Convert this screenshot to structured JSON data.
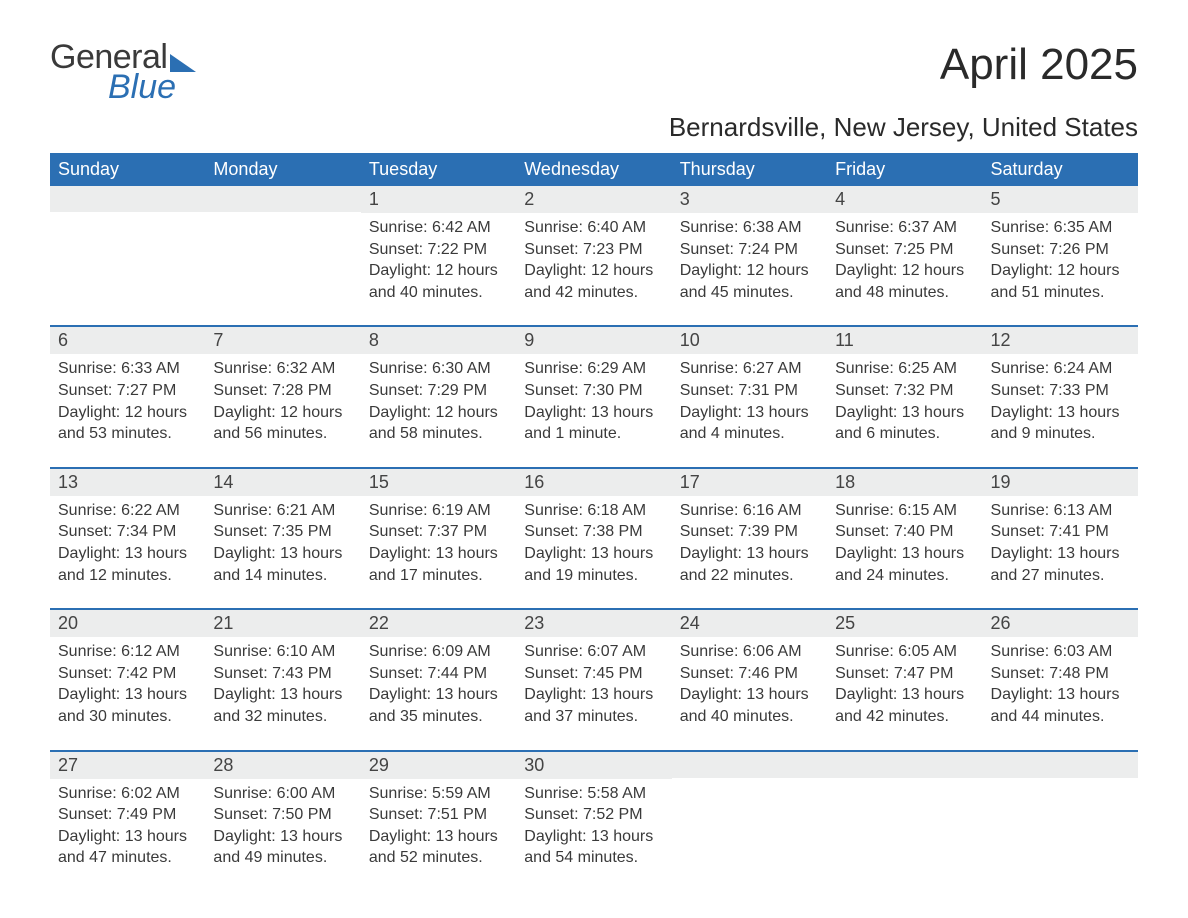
{
  "logo": {
    "line1": "General",
    "line2": "Blue"
  },
  "title": "April 2025",
  "location": "Bernardsville, New Jersey, United States",
  "colors": {
    "header_bg": "#2b6fb3",
    "header_text": "#ffffff",
    "daynum_bg": "#eceded",
    "border": "#2b6fb3",
    "body_text": "#3a3a3a",
    "page_bg": "#ffffff"
  },
  "dow": [
    "Sunday",
    "Monday",
    "Tuesday",
    "Wednesday",
    "Thursday",
    "Friday",
    "Saturday"
  ],
  "weeks": [
    [
      {
        "n": "",
        "sr": "",
        "ss": "",
        "dl": ""
      },
      {
        "n": "",
        "sr": "",
        "ss": "",
        "dl": ""
      },
      {
        "n": "1",
        "sr": "Sunrise: 6:42 AM",
        "ss": "Sunset: 7:22 PM",
        "dl": "Daylight: 12 hours and 40 minutes."
      },
      {
        "n": "2",
        "sr": "Sunrise: 6:40 AM",
        "ss": "Sunset: 7:23 PM",
        "dl": "Daylight: 12 hours and 42 minutes."
      },
      {
        "n": "3",
        "sr": "Sunrise: 6:38 AM",
        "ss": "Sunset: 7:24 PM",
        "dl": "Daylight: 12 hours and 45 minutes."
      },
      {
        "n": "4",
        "sr": "Sunrise: 6:37 AM",
        "ss": "Sunset: 7:25 PM",
        "dl": "Daylight: 12 hours and 48 minutes."
      },
      {
        "n": "5",
        "sr": "Sunrise: 6:35 AM",
        "ss": "Sunset: 7:26 PM",
        "dl": "Daylight: 12 hours and 51 minutes."
      }
    ],
    [
      {
        "n": "6",
        "sr": "Sunrise: 6:33 AM",
        "ss": "Sunset: 7:27 PM",
        "dl": "Daylight: 12 hours and 53 minutes."
      },
      {
        "n": "7",
        "sr": "Sunrise: 6:32 AM",
        "ss": "Sunset: 7:28 PM",
        "dl": "Daylight: 12 hours and 56 minutes."
      },
      {
        "n": "8",
        "sr": "Sunrise: 6:30 AM",
        "ss": "Sunset: 7:29 PM",
        "dl": "Daylight: 12 hours and 58 minutes."
      },
      {
        "n": "9",
        "sr": "Sunrise: 6:29 AM",
        "ss": "Sunset: 7:30 PM",
        "dl": "Daylight: 13 hours and 1 minute."
      },
      {
        "n": "10",
        "sr": "Sunrise: 6:27 AM",
        "ss": "Sunset: 7:31 PM",
        "dl": "Daylight: 13 hours and 4 minutes."
      },
      {
        "n": "11",
        "sr": "Sunrise: 6:25 AM",
        "ss": "Sunset: 7:32 PM",
        "dl": "Daylight: 13 hours and 6 minutes."
      },
      {
        "n": "12",
        "sr": "Sunrise: 6:24 AM",
        "ss": "Sunset: 7:33 PM",
        "dl": "Daylight: 13 hours and 9 minutes."
      }
    ],
    [
      {
        "n": "13",
        "sr": "Sunrise: 6:22 AM",
        "ss": "Sunset: 7:34 PM",
        "dl": "Daylight: 13 hours and 12 minutes."
      },
      {
        "n": "14",
        "sr": "Sunrise: 6:21 AM",
        "ss": "Sunset: 7:35 PM",
        "dl": "Daylight: 13 hours and 14 minutes."
      },
      {
        "n": "15",
        "sr": "Sunrise: 6:19 AM",
        "ss": "Sunset: 7:37 PM",
        "dl": "Daylight: 13 hours and 17 minutes."
      },
      {
        "n": "16",
        "sr": "Sunrise: 6:18 AM",
        "ss": "Sunset: 7:38 PM",
        "dl": "Daylight: 13 hours and 19 minutes."
      },
      {
        "n": "17",
        "sr": "Sunrise: 6:16 AM",
        "ss": "Sunset: 7:39 PM",
        "dl": "Daylight: 13 hours and 22 minutes."
      },
      {
        "n": "18",
        "sr": "Sunrise: 6:15 AM",
        "ss": "Sunset: 7:40 PM",
        "dl": "Daylight: 13 hours and 24 minutes."
      },
      {
        "n": "19",
        "sr": "Sunrise: 6:13 AM",
        "ss": "Sunset: 7:41 PM",
        "dl": "Daylight: 13 hours and 27 minutes."
      }
    ],
    [
      {
        "n": "20",
        "sr": "Sunrise: 6:12 AM",
        "ss": "Sunset: 7:42 PM",
        "dl": "Daylight: 13 hours and 30 minutes."
      },
      {
        "n": "21",
        "sr": "Sunrise: 6:10 AM",
        "ss": "Sunset: 7:43 PM",
        "dl": "Daylight: 13 hours and 32 minutes."
      },
      {
        "n": "22",
        "sr": "Sunrise: 6:09 AM",
        "ss": "Sunset: 7:44 PM",
        "dl": "Daylight: 13 hours and 35 minutes."
      },
      {
        "n": "23",
        "sr": "Sunrise: 6:07 AM",
        "ss": "Sunset: 7:45 PM",
        "dl": "Daylight: 13 hours and 37 minutes."
      },
      {
        "n": "24",
        "sr": "Sunrise: 6:06 AM",
        "ss": "Sunset: 7:46 PM",
        "dl": "Daylight: 13 hours and 40 minutes."
      },
      {
        "n": "25",
        "sr": "Sunrise: 6:05 AM",
        "ss": "Sunset: 7:47 PM",
        "dl": "Daylight: 13 hours and 42 minutes."
      },
      {
        "n": "26",
        "sr": "Sunrise: 6:03 AM",
        "ss": "Sunset: 7:48 PM",
        "dl": "Daylight: 13 hours and 44 minutes."
      }
    ],
    [
      {
        "n": "27",
        "sr": "Sunrise: 6:02 AM",
        "ss": "Sunset: 7:49 PM",
        "dl": "Daylight: 13 hours and 47 minutes."
      },
      {
        "n": "28",
        "sr": "Sunrise: 6:00 AM",
        "ss": "Sunset: 7:50 PM",
        "dl": "Daylight: 13 hours and 49 minutes."
      },
      {
        "n": "29",
        "sr": "Sunrise: 5:59 AM",
        "ss": "Sunset: 7:51 PM",
        "dl": "Daylight: 13 hours and 52 minutes."
      },
      {
        "n": "30",
        "sr": "Sunrise: 5:58 AM",
        "ss": "Sunset: 7:52 PM",
        "dl": "Daylight: 13 hours and 54 minutes."
      },
      {
        "n": "",
        "sr": "",
        "ss": "",
        "dl": ""
      },
      {
        "n": "",
        "sr": "",
        "ss": "",
        "dl": ""
      },
      {
        "n": "",
        "sr": "",
        "ss": "",
        "dl": ""
      }
    ]
  ]
}
